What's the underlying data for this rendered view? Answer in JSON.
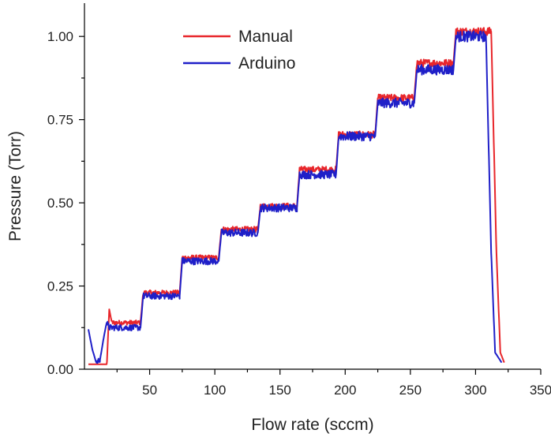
{
  "chart_data": {
    "type": "line",
    "title": "",
    "xlabel": "Flow rate (sccm)",
    "ylabel": "Pressure (Torr)",
    "xlim": [
      0,
      350
    ],
    "ylim": [
      0,
      1.1
    ],
    "xticks": [
      50,
      100,
      150,
      200,
      250,
      300,
      350
    ],
    "xtick_labels": [
      "50",
      "100",
      "150",
      "200",
      "250",
      "300",
      "350"
    ],
    "yticks": [
      0.0,
      0.25,
      0.5,
      0.75,
      1.0
    ],
    "ytick_labels": [
      "0.00",
      "0.25",
      "0.50",
      "0.75",
      "1.00"
    ],
    "legend": {
      "placement": "top-left",
      "entries": [
        "Manual",
        "Arduino"
      ]
    },
    "grid": false,
    "series": [
      {
        "name": "Manual",
        "color": "#e8262b",
        "noise": 0.006,
        "points": [
          [
            3,
            0.0
          ],
          [
            17,
            0.0
          ],
          [
            19,
            0.18
          ],
          [
            21,
            0.14
          ],
          [
            43,
            0.14
          ],
          [
            45,
            0.23
          ],
          [
            73,
            0.23
          ],
          [
            75,
            0.335
          ],
          [
            103,
            0.335
          ],
          [
            105,
            0.42
          ],
          [
            133,
            0.42
          ],
          [
            135,
            0.49
          ],
          [
            163,
            0.49
          ],
          [
            165,
            0.6
          ],
          [
            193,
            0.6
          ],
          [
            195,
            0.705
          ],
          [
            223,
            0.705
          ],
          [
            225,
            0.815
          ],
          [
            253,
            0.815
          ],
          [
            255,
            0.92
          ],
          [
            283,
            0.92
          ],
          [
            285,
            1.015
          ],
          [
            312,
            1.015
          ],
          [
            316,
            0.35
          ],
          [
            319,
            0.05
          ],
          [
            322,
            0.02
          ]
        ]
      },
      {
        "name": "Arduino",
        "color": "#1f1fc8",
        "noise": 0.008,
        "points": [
          [
            3,
            0.12
          ],
          [
            6,
            0.06
          ],
          [
            9,
            0.02
          ],
          [
            12,
            0.03
          ],
          [
            15,
            0.1
          ],
          [
            17,
            0.14
          ],
          [
            19,
            0.125
          ],
          [
            43,
            0.125
          ],
          [
            45,
            0.22
          ],
          [
            73,
            0.22
          ],
          [
            75,
            0.325
          ],
          [
            103,
            0.325
          ],
          [
            105,
            0.41
          ],
          [
            133,
            0.41
          ],
          [
            135,
            0.485
          ],
          [
            163,
            0.485
          ],
          [
            165,
            0.585
          ],
          [
            193,
            0.585
          ],
          [
            195,
            0.7
          ],
          [
            223,
            0.7
          ],
          [
            225,
            0.8
          ],
          [
            253,
            0.8
          ],
          [
            255,
            0.9
          ],
          [
            283,
            0.9
          ],
          [
            285,
            1.0
          ],
          [
            308,
            1.0
          ],
          [
            312,
            0.35
          ],
          [
            315,
            0.05
          ],
          [
            320,
            0.02
          ]
        ]
      }
    ]
  }
}
